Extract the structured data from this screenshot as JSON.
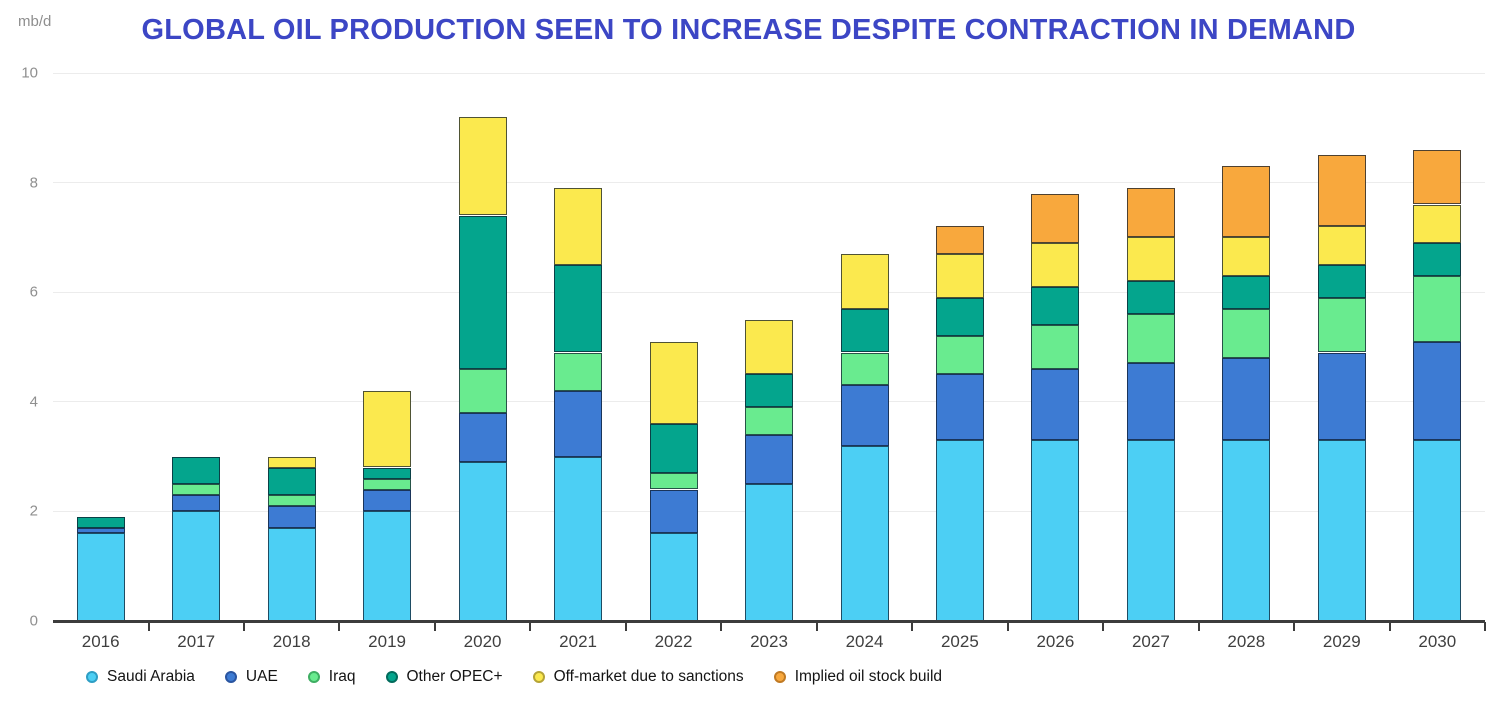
{
  "title": "GLOBAL OIL PRODUCTION SEEN TO INCREASE DESPITE CONTRACTION IN DEMAND",
  "y_axis_unit": "mb/d",
  "colors": {
    "background": "#FFFFFF",
    "title": "#3C46C5",
    "axis": "#3C3C3C",
    "grid": "#ECECEC",
    "y_label": "#8F8F8F",
    "x_label": "#3F3F3F",
    "legend_text": "#141414",
    "segment_outline": "rgba(13,25,43,0.72)"
  },
  "chart_data": {
    "type": "bar",
    "stacked": true,
    "title": "GLOBAL OIL PRODUCTION SEEN TO INCREASE DESPITE CONTRACTION IN DEMAND",
    "xlabel": "",
    "ylabel": "mb/d",
    "ylim": [
      0,
      10
    ],
    "yticks": [
      0,
      2,
      4,
      6,
      8,
      10
    ],
    "grid": true,
    "legend_position": "bottom",
    "categories": [
      "2016",
      "2017",
      "2018",
      "2019",
      "2020",
      "2021",
      "2022",
      "2023",
      "2024",
      "2025",
      "2026",
      "2027",
      "2028",
      "2029",
      "2030"
    ],
    "series": [
      {
        "name": "Saudi Arabia",
        "color": "#4CCFF4",
        "swatch_border": "#2E9EC4",
        "values": [
          1.6,
          2.0,
          1.7,
          2.0,
          2.9,
          3.0,
          1.6,
          2.5,
          3.2,
          3.3,
          3.3,
          3.3,
          3.3,
          3.3,
          3.3
        ]
      },
      {
        "name": "UAE",
        "color": "#3D7BD3",
        "swatch_border": "#2A55A0",
        "values": [
          0.1,
          0.3,
          0.4,
          0.4,
          0.9,
          1.2,
          0.8,
          0.9,
          1.1,
          1.2,
          1.3,
          1.4,
          1.5,
          1.6,
          1.8
        ]
      },
      {
        "name": "Iraq",
        "color": "#69EB8F",
        "swatch_border": "#3FAE63",
        "values": [
          0,
          0.2,
          0.2,
          0.2,
          0.8,
          0.7,
          0.3,
          0.5,
          0.6,
          0.7,
          0.8,
          0.9,
          0.9,
          1.0,
          1.2
        ]
      },
      {
        "name": "Other OPEC+",
        "color": "#04A58D",
        "swatch_border": "#026B5C",
        "values": [
          0.2,
          0.5,
          0.5,
          0.2,
          2.8,
          1.6,
          0.9,
          0.6,
          0.8,
          0.7,
          0.7,
          0.6,
          0.6,
          0.6,
          0.6
        ]
      },
      {
        "name": "Off-market due to sanctions",
        "color": "#FBE94E",
        "swatch_border": "#B5A437",
        "values": [
          0,
          0,
          0.2,
          1.4,
          1.8,
          1.4,
          1.5,
          1.0,
          1.0,
          0.8,
          0.8,
          0.8,
          0.7,
          0.7,
          0.7
        ]
      },
      {
        "name": "Implied oil stock build",
        "color": "#F8A83D",
        "swatch_border": "#C07A24",
        "values": [
          0,
          0,
          0,
          0,
          0,
          0,
          0,
          0,
          0,
          0.5,
          0.9,
          0.9,
          1.3,
          1.3,
          1.0
        ]
      }
    ]
  }
}
